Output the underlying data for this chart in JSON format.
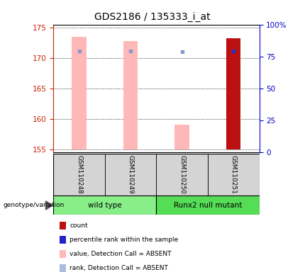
{
  "title": "GDS2186 / 135333_i_at",
  "samples": [
    "GSM110248",
    "GSM110249",
    "GSM110250",
    "GSM110251"
  ],
  "ylim_left": [
    154.5,
    175.5
  ],
  "ylim_right": [
    0,
    100
  ],
  "yticks_left": [
    155,
    160,
    165,
    170,
    175
  ],
  "yticks_right": [
    0,
    25,
    50,
    75,
    100
  ],
  "ytick_labels_right": [
    "0",
    "25",
    "50",
    "75",
    "100%"
  ],
  "bar_bottoms": [
    155,
    155,
    155,
    155
  ],
  "bar_tops": [
    173.5,
    172.8,
    159.0,
    173.2
  ],
  "bar_colors": [
    "#ffb8b8",
    "#ffb8b8",
    "#ffb8b8",
    "#bb1111"
  ],
  "blue_square_values": [
    171.1,
    171.1,
    171.0,
    171.1
  ],
  "groups": [
    {
      "label": "wild type",
      "samples": [
        0,
        1
      ],
      "color": "#88ee88"
    },
    {
      "label": "Runx2 null mutant",
      "samples": [
        2,
        3
      ],
      "color": "#55dd55"
    }
  ],
  "legend_colors": [
    "#bb1111",
    "#2222cc",
    "#ffb8b8",
    "#aabbdd"
  ],
  "legend_labels": [
    "count",
    "percentile rank within the sample",
    "value, Detection Call = ABSENT",
    "rank, Detection Call = ABSENT"
  ],
  "group_label": "genotype/variation",
  "left_axis_color": "#cc2200",
  "right_axis_color": "#0000cc",
  "title_fontsize": 10,
  "tick_fontsize": 7.5
}
